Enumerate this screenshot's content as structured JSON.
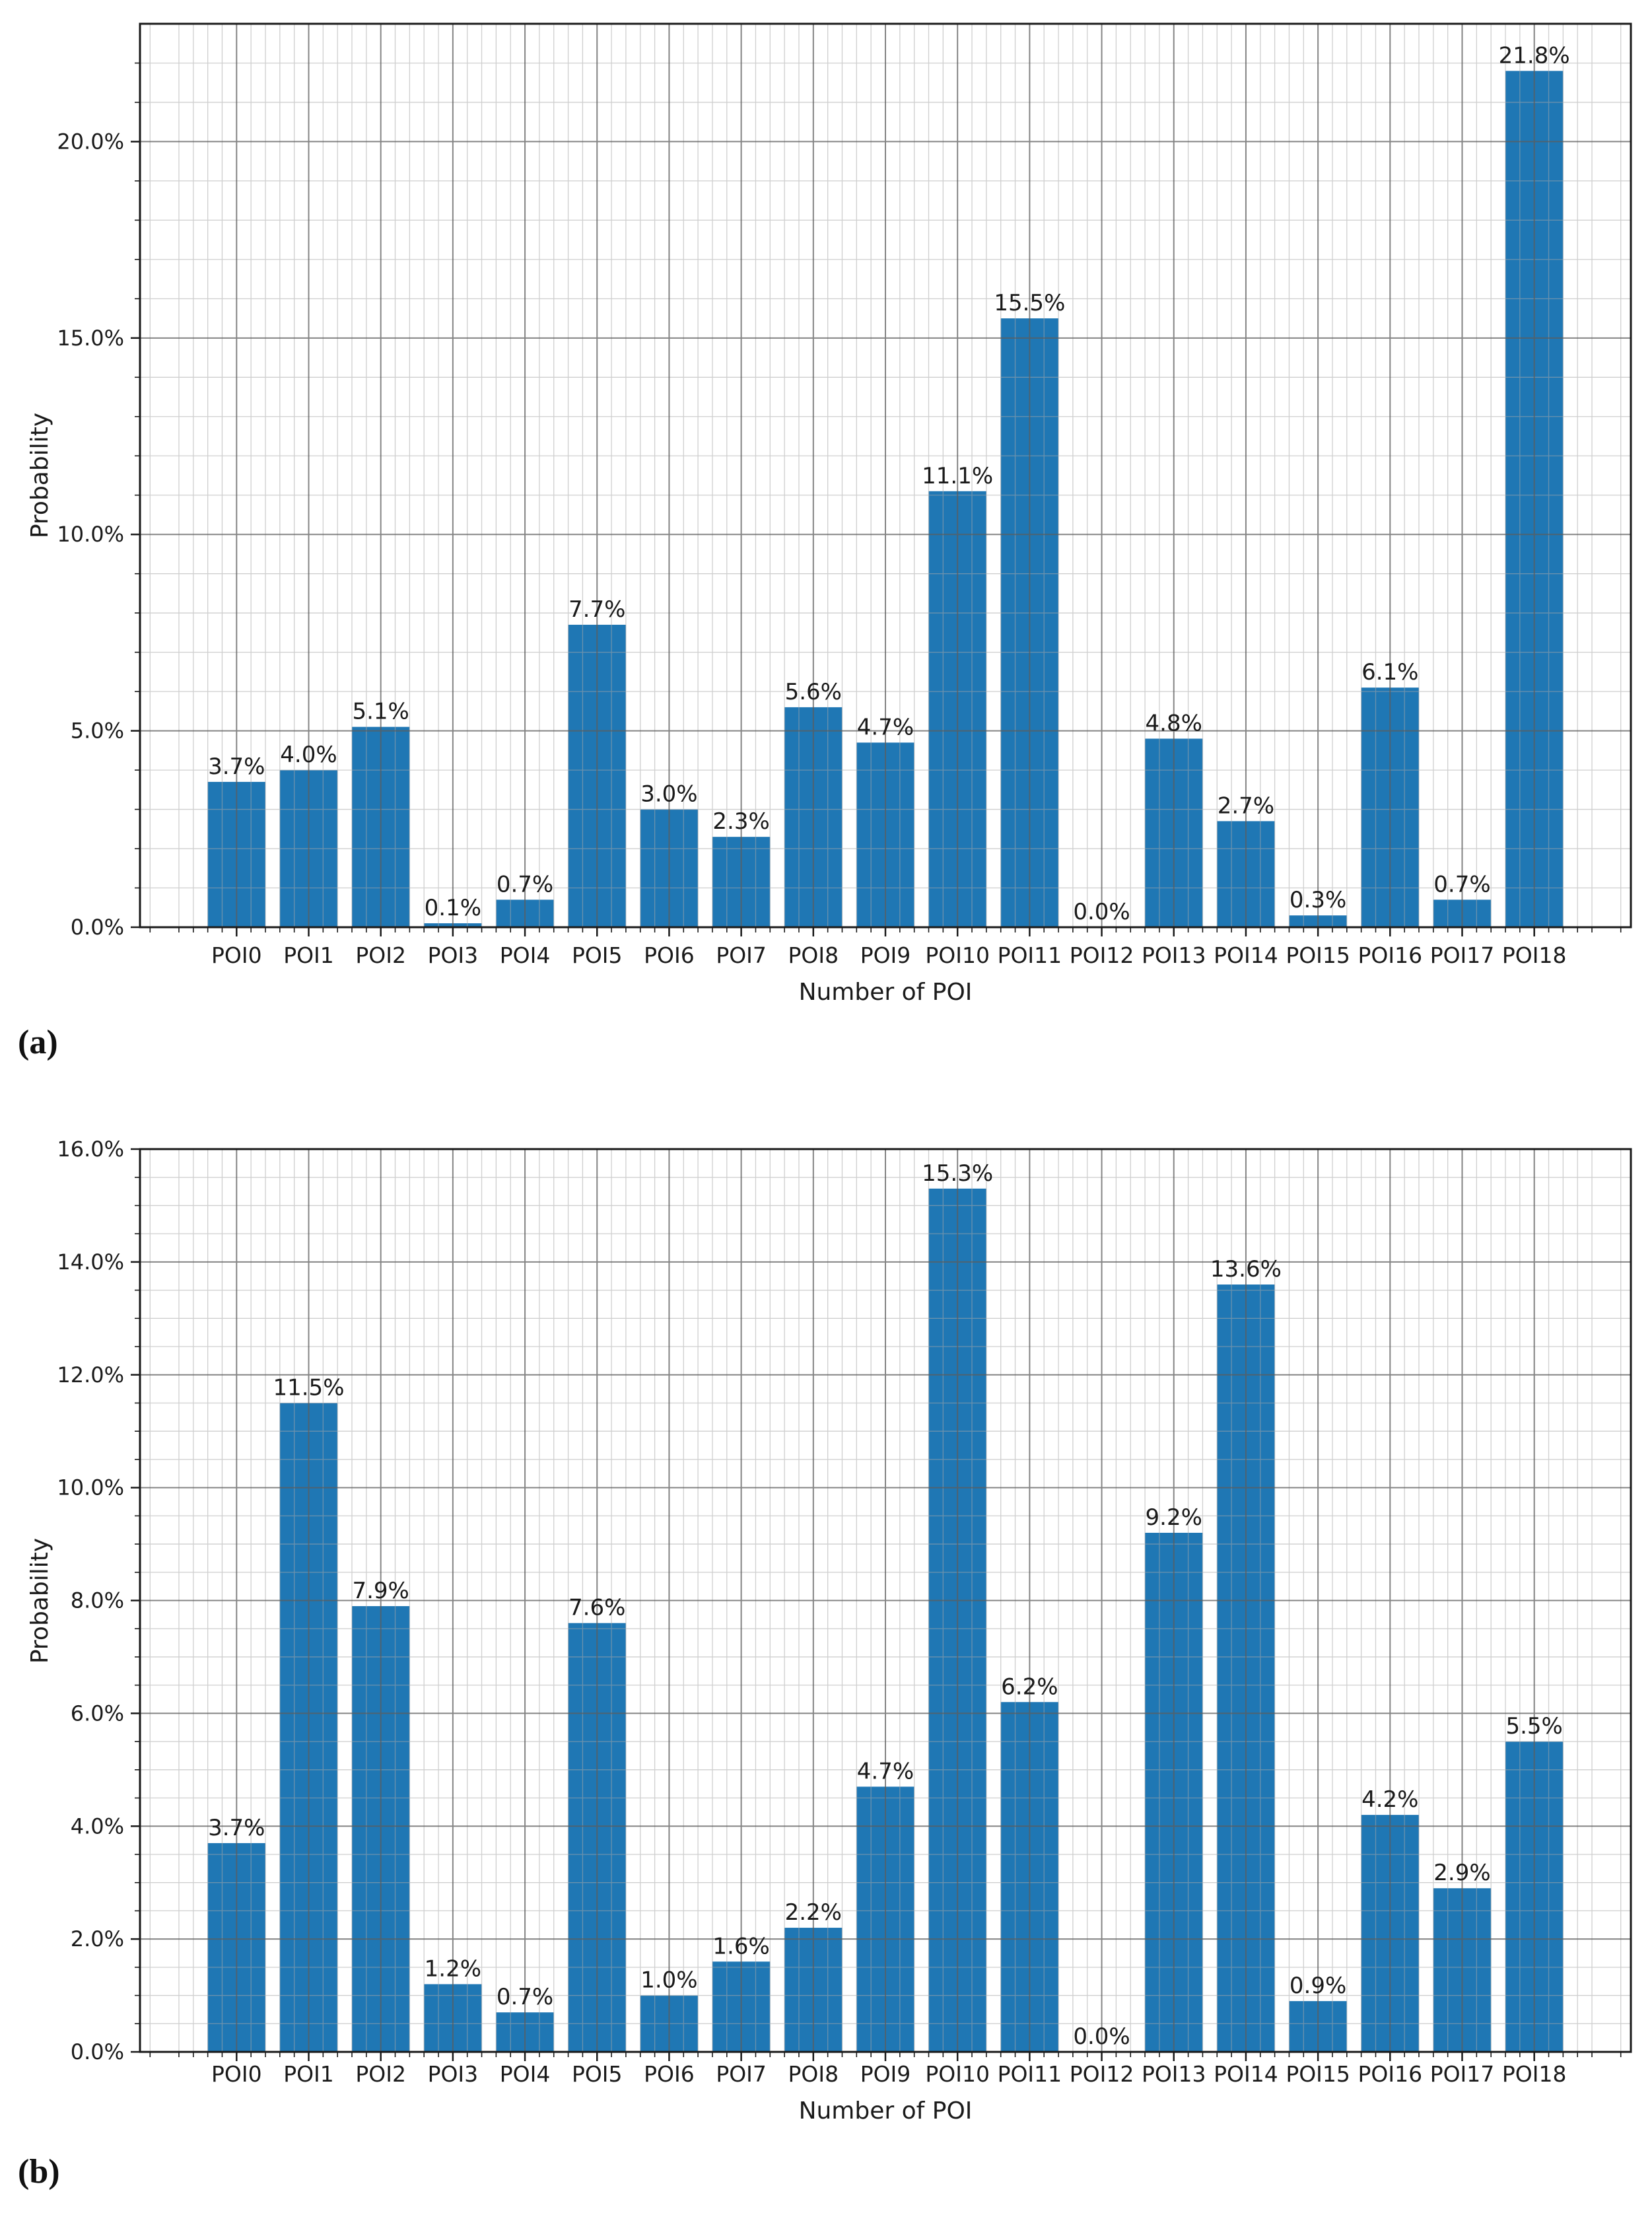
{
  "page": {
    "background": "#ffffff"
  },
  "style": {
    "bar_color": "#1f77b4",
    "grid_major_color": "#5d5d5d",
    "grid_minor_color": "#a8a8a8",
    "spine_color": "#1a1a1a",
    "text_color": "#1a1a1a"
  },
  "captions": {
    "a": "(a)",
    "b": "(b)"
  },
  "chart_data": [
    {
      "type": "bar",
      "panel": "a",
      "title": "",
      "xlabel": "Number of POI",
      "ylabel": "Probability",
      "categories": [
        "POI0",
        "POI1",
        "POI2",
        "POI3",
        "POI4",
        "POI5",
        "POI6",
        "POI7",
        "POI8",
        "POI9",
        "POI10",
        "POI11",
        "POI12",
        "POI13",
        "POI14",
        "POI15",
        "POI16",
        "POI17",
        "POI18"
      ],
      "values": [
        3.7,
        4.0,
        5.1,
        0.1,
        0.7,
        7.7,
        3.0,
        2.3,
        5.6,
        4.7,
        11.1,
        15.5,
        0.0,
        4.8,
        2.7,
        0.3,
        6.1,
        0.7,
        21.8
      ],
      "bar_labels": [
        "3.7%",
        "4.0%",
        "5.1%",
        "0.1%",
        "0.7%",
        "7.7%",
        "3.0%",
        "2.3%",
        "5.6%",
        "4.7%",
        "11.1%",
        "15.5%",
        "0.0%",
        "4.8%",
        "2.7%",
        "0.3%",
        "6.1%",
        "0.7%",
        "21.8%"
      ],
      "ylim": [
        0,
        23
      ],
      "ytick_major_step": 5,
      "ytick_minor_step": 1,
      "ytick_labels": [
        "0.0%",
        "5.0%",
        "10.0%",
        "15.0%",
        "20.0%"
      ],
      "xminor_divisions": 5,
      "grid": "both",
      "legend": null
    },
    {
      "type": "bar",
      "panel": "b",
      "title": "",
      "xlabel": "Number of POI",
      "ylabel": "Probability",
      "categories": [
        "POI0",
        "POI1",
        "POI2",
        "POI3",
        "POI4",
        "POI5",
        "POI6",
        "POI7",
        "POI8",
        "POI9",
        "POI10",
        "POI11",
        "POI12",
        "POI13",
        "POI14",
        "POI15",
        "POI16",
        "POI17",
        "POI18"
      ],
      "values": [
        3.7,
        11.5,
        7.9,
        1.2,
        0.7,
        7.6,
        1.0,
        1.6,
        2.2,
        4.7,
        15.3,
        6.2,
        0.0,
        9.2,
        13.6,
        0.9,
        4.2,
        2.9,
        5.5
      ],
      "bar_labels": [
        "3.7%",
        "11.5%",
        "7.9%",
        "1.2%",
        "0.7%",
        "7.6%",
        "1.0%",
        "1.6%",
        "2.2%",
        "4.7%",
        "15.3%",
        "6.2%",
        "0.0%",
        "9.2%",
        "13.6%",
        "0.9%",
        "4.2%",
        "2.9%",
        "5.5%"
      ],
      "ylim": [
        0,
        16
      ],
      "ytick_major_step": 2,
      "ytick_minor_step": 0.5,
      "ytick_labels": [
        "0.0%",
        "2.0%",
        "4.0%",
        "6.0%",
        "8.0%",
        "10.0%",
        "12.0%",
        "14.0%",
        "16.0%"
      ],
      "xminor_divisions": 5,
      "grid": "both",
      "legend": null
    }
  ]
}
